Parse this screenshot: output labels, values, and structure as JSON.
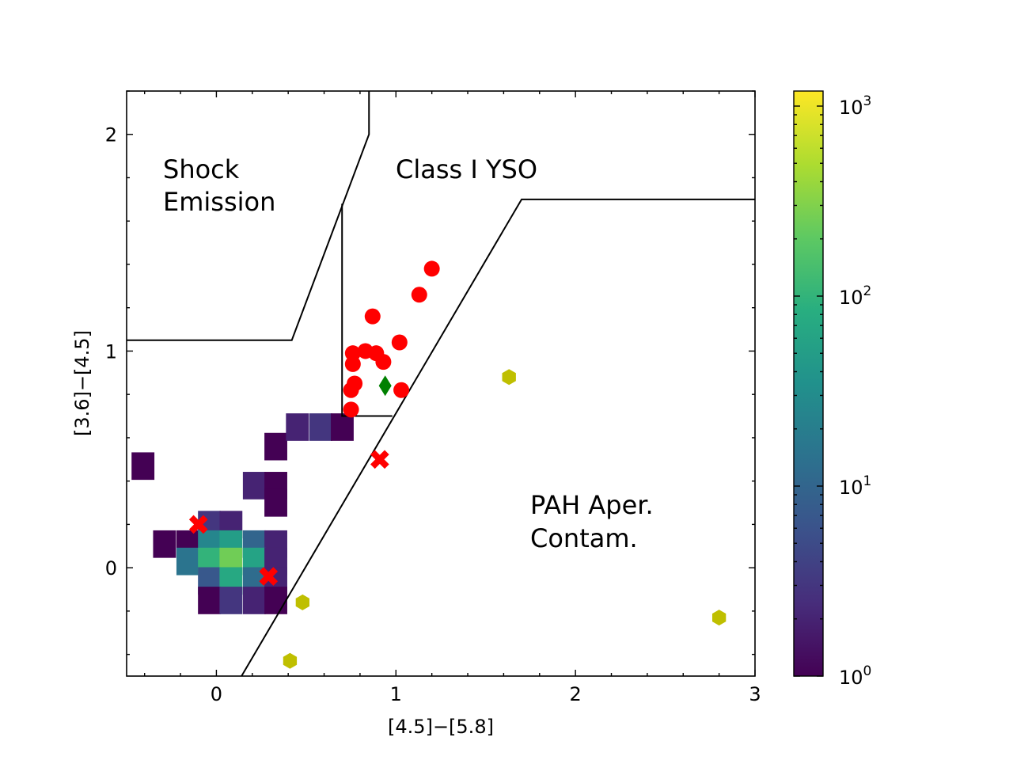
{
  "chart_data": {
    "type": "scatter",
    "xlabel": "[4.5]−[5.8]",
    "ylabel": "[3.6]−[4.5]",
    "xlim": [
      -0.5,
      3.0
    ],
    "ylim": [
      -0.5,
      2.2
    ],
    "xticks": [
      0,
      1,
      2,
      3
    ],
    "xtick_labels": [
      "0",
      "1",
      "2",
      "3"
    ],
    "yticks": [
      0,
      1,
      2
    ],
    "ytick_labels": [
      "0",
      "1",
      "2"
    ],
    "regions": {
      "shock": [
        "Shock",
        "Emission"
      ],
      "class1": [
        "Class I YSO"
      ],
      "pah": [
        "PAH Aper.",
        "Contam."
      ]
    },
    "boundaries": [
      {
        "name": "shock-boundary",
        "x": [
          -0.5,
          0.42,
          0.85,
          0.85
        ],
        "y": [
          1.05,
          1.05,
          2.0,
          2.2
        ]
      },
      {
        "name": "class1-left-boundary",
        "x": [
          0.7,
          0.7,
          0.98
        ],
        "y": [
          1.68,
          0.7,
          0.7
        ]
      },
      {
        "name": "pah-boundary",
        "x": [
          0.14,
          1.7,
          3.0
        ],
        "y": [
          -0.5,
          1.7,
          1.7
        ]
      }
    ],
    "histogram": {
      "bin_size": 0.125,
      "norm": "log",
      "vmin": 1,
      "vmax": 1200,
      "colormap": "viridis",
      "bins": [
        {
          "x": -0.41,
          "y": 0.47,
          "count": 1
        },
        {
          "x": 0.33,
          "y": 0.56,
          "count": 1
        },
        {
          "x": 0.45,
          "y": 0.65,
          "count": 2
        },
        {
          "x": 0.58,
          "y": 0.65,
          "count": 3
        },
        {
          "x": 0.7,
          "y": 0.65,
          "count": 1
        },
        {
          "x": 0.21,
          "y": 0.38,
          "count": 2
        },
        {
          "x": 0.33,
          "y": 0.38,
          "count": 1
        },
        {
          "x": 0.33,
          "y": 0.3,
          "count": 1
        },
        {
          "x": -0.04,
          "y": 0.2,
          "count": 3
        },
        {
          "x": 0.08,
          "y": 0.2,
          "count": 2
        },
        {
          "x": -0.29,
          "y": 0.11,
          "count": 1
        },
        {
          "x": -0.16,
          "y": 0.11,
          "count": 1
        },
        {
          "x": -0.04,
          "y": 0.11,
          "count": 25
        },
        {
          "x": 0.08,
          "y": 0.11,
          "count": 50
        },
        {
          "x": 0.21,
          "y": 0.11,
          "count": 10
        },
        {
          "x": 0.33,
          "y": 0.11,
          "count": 2
        },
        {
          "x": -0.16,
          "y": 0.03,
          "count": 15
        },
        {
          "x": -0.04,
          "y": 0.03,
          "count": 100
        },
        {
          "x": 0.08,
          "y": 0.03,
          "count": 250
        },
        {
          "x": 0.21,
          "y": 0.03,
          "count": 60
        },
        {
          "x": 0.33,
          "y": 0.03,
          "count": 2
        },
        {
          "x": -0.04,
          "y": -0.06,
          "count": 7
        },
        {
          "x": 0.08,
          "y": -0.06,
          "count": 70
        },
        {
          "x": 0.21,
          "y": -0.06,
          "count": 12
        },
        {
          "x": 0.33,
          "y": -0.06,
          "count": 2
        },
        {
          "x": -0.04,
          "y": -0.15,
          "count": 1
        },
        {
          "x": 0.08,
          "y": -0.15,
          "count": 3
        },
        {
          "x": 0.21,
          "y": -0.15,
          "count": 2
        },
        {
          "x": 0.33,
          "y": -0.15,
          "count": 1
        }
      ]
    },
    "series": [
      {
        "name": "class-i-yso",
        "marker": "circle",
        "color": "#ff0000",
        "points": [
          {
            "x": 1.2,
            "y": 1.38
          },
          {
            "x": 1.13,
            "y": 1.26
          },
          {
            "x": 0.87,
            "y": 1.16
          },
          {
            "x": 1.02,
            "y": 1.04
          },
          {
            "x": 0.76,
            "y": 0.99
          },
          {
            "x": 0.83,
            "y": 1.0
          },
          {
            "x": 0.89,
            "y": 0.99
          },
          {
            "x": 0.76,
            "y": 0.94
          },
          {
            "x": 0.93,
            "y": 0.95
          },
          {
            "x": 0.77,
            "y": 0.85
          },
          {
            "x": 0.75,
            "y": 0.82
          },
          {
            "x": 1.03,
            "y": 0.82
          },
          {
            "x": 0.75,
            "y": 0.73
          }
        ]
      },
      {
        "name": "diamond-source",
        "marker": "diamond",
        "color": "#008000",
        "points": [
          {
            "x": 0.94,
            "y": 0.84
          }
        ]
      },
      {
        "name": "x-sources",
        "marker": "x",
        "color": "#ff0000",
        "points": [
          {
            "x": -0.1,
            "y": 0.2
          },
          {
            "x": 0.29,
            "y": -0.04
          },
          {
            "x": 0.91,
            "y": 0.5
          }
        ]
      },
      {
        "name": "hexagon-sources",
        "marker": "hexagon",
        "color": "#bfbf00",
        "points": [
          {
            "x": 1.63,
            "y": 0.88
          },
          {
            "x": 0.48,
            "y": -0.16
          },
          {
            "x": 0.41,
            "y": -0.43
          },
          {
            "x": 2.8,
            "y": -0.23
          }
        ]
      }
    ],
    "colorbar": {
      "scale": "log",
      "min": 1,
      "max": 1200,
      "ticks": [
        {
          "value": 1,
          "base": "10",
          "exp": "0"
        },
        {
          "value": 10,
          "base": "10",
          "exp": "1"
        },
        {
          "value": 100,
          "base": "10",
          "exp": "2"
        },
        {
          "value": 1000,
          "base": "10",
          "exp": "3"
        }
      ]
    }
  }
}
